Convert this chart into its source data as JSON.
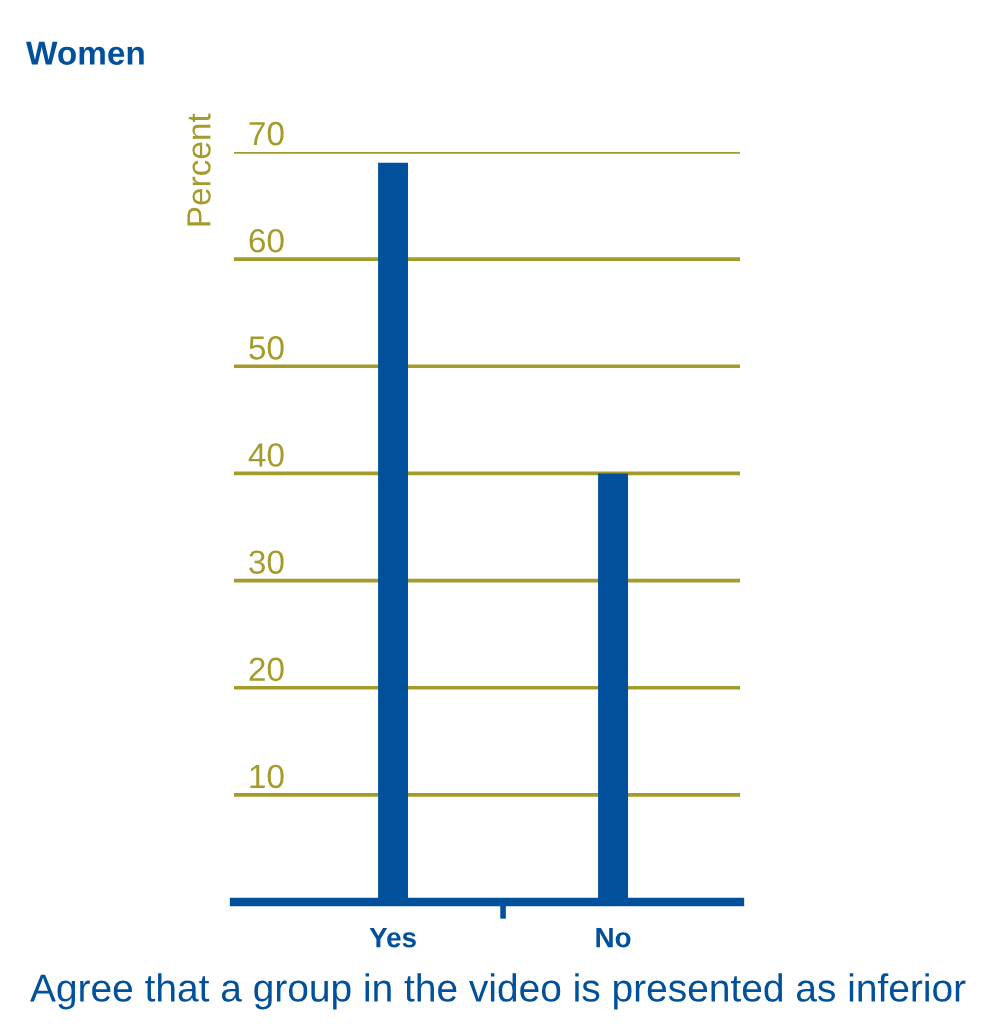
{
  "chart_data": {
    "type": "bar",
    "title": "Women",
    "xlabel": "Agree that a group in the video is presented as inferior",
    "ylabel": "Percent",
    "categories": [
      "Yes",
      "No"
    ],
    "values": [
      69,
      40
    ],
    "color": "#00509b",
    "ylim": [
      0,
      70
    ],
    "yticks": [
      10,
      20,
      30,
      40,
      50,
      60,
      70
    ],
    "grid": "y"
  }
}
